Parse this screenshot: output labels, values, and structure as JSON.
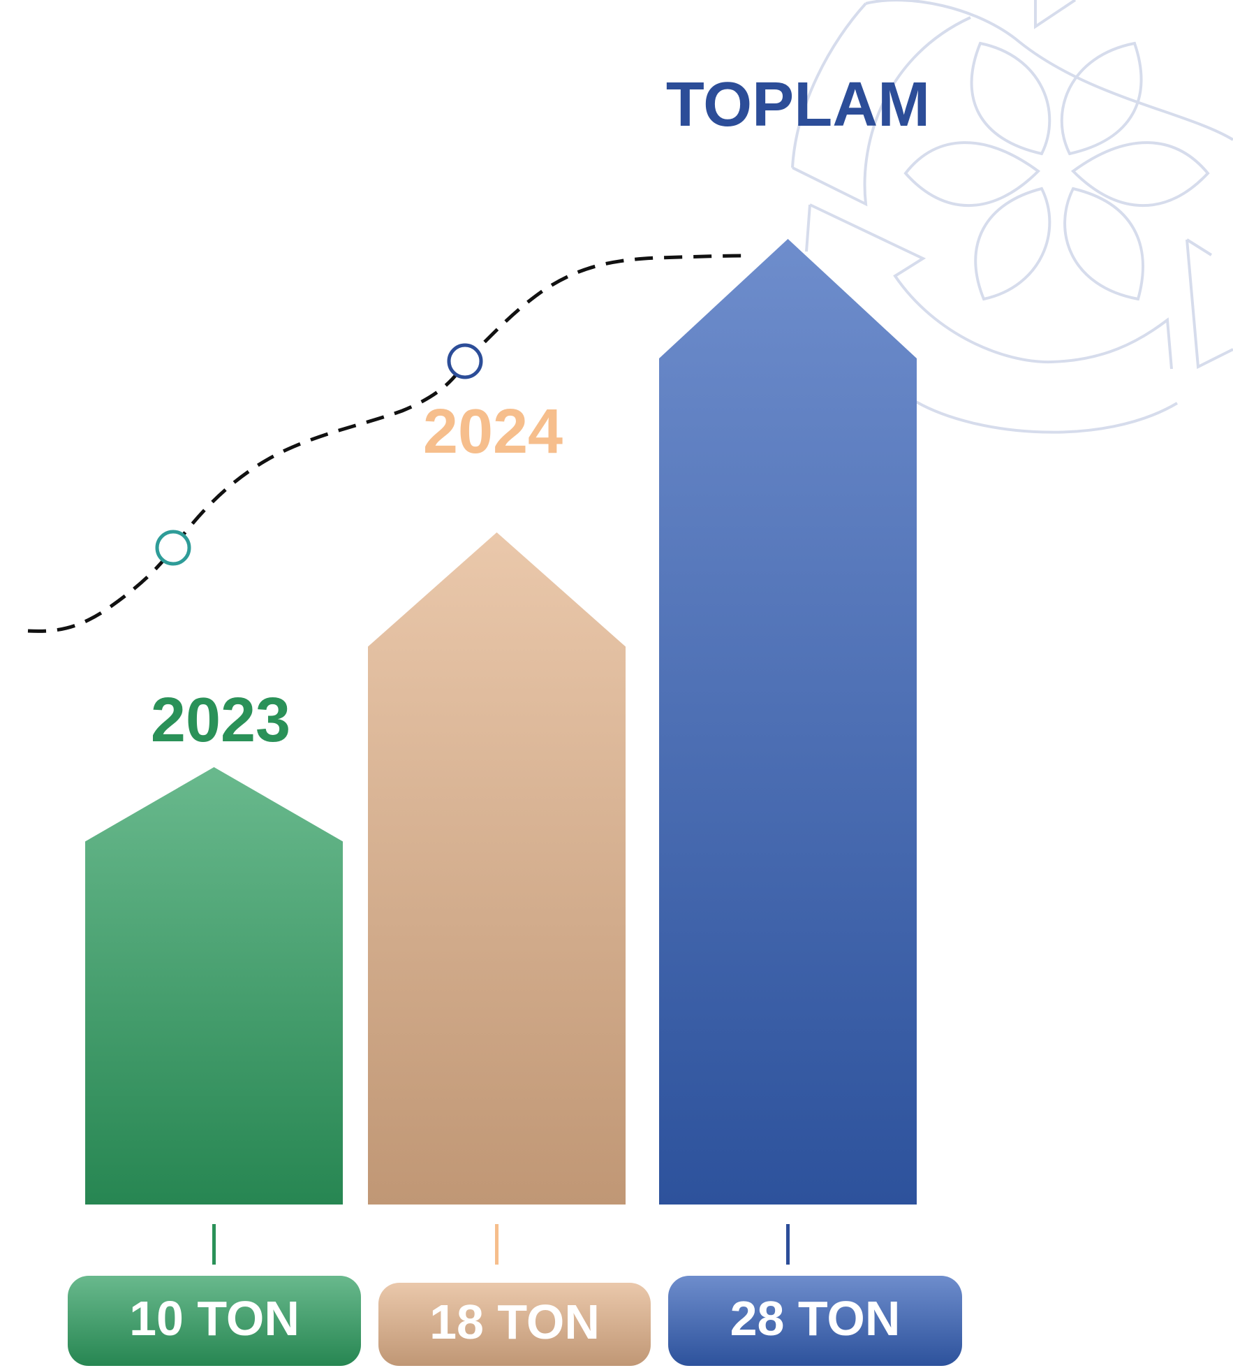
{
  "chart_data": {
    "type": "bar",
    "categories": [
      "2023",
      "2024",
      "TOPLAM"
    ],
    "values": [
      10,
      18,
      28
    ],
    "value_labels": [
      "10 TON",
      "18 TON",
      "28 TON"
    ],
    "colors": [
      "#2e9e60",
      "#e2b28a",
      "#3560b8"
    ],
    "category_colors": [
      "#2a9158",
      "#f6be8c",
      "#2c4d98"
    ]
  }
}
